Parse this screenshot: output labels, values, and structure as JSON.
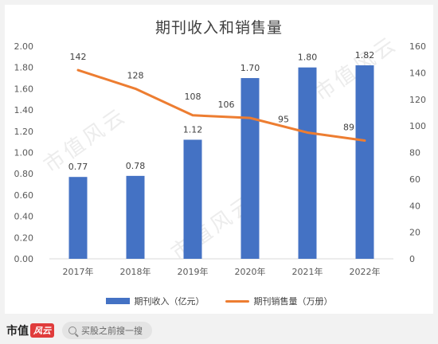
{
  "chart_data": {
    "type": "bar",
    "title": "期刊收入和销售量",
    "categories": [
      "2017年",
      "2018年",
      "2019年",
      "2020年",
      "2021年",
      "2022年"
    ],
    "series": [
      {
        "name": "期刊收入（亿元）",
        "type": "bar",
        "axis": "left",
        "color": "#4472c4",
        "values": [
          0.77,
          0.78,
          1.12,
          1.7,
          1.8,
          1.82
        ],
        "labels": [
          "0.77",
          "0.78",
          "1.12",
          "1.70",
          "1.80",
          "1.82"
        ]
      },
      {
        "name": "期刊销售量（万册）",
        "type": "line",
        "axis": "right",
        "color": "#ed7d31",
        "values": [
          142,
          128,
          108,
          106,
          95,
          89
        ],
        "labels": [
          "142",
          "128",
          "108",
          "106",
          "95",
          "89"
        ]
      }
    ],
    "y_left": {
      "lim": [
        0,
        2.0
      ],
      "ticks": [
        "0.00",
        "0.20",
        "0.40",
        "0.60",
        "0.80",
        "1.00",
        "1.20",
        "1.40",
        "1.60",
        "1.80",
        "2.00"
      ]
    },
    "y_right": {
      "lim": [
        0,
        160
      ],
      "ticks": [
        "0",
        "20",
        "40",
        "60",
        "80",
        "100",
        "120",
        "140",
        "160"
      ]
    },
    "grid": false,
    "legend": "bottom"
  },
  "footer": {
    "brand": "市值",
    "brand_seal": "风云",
    "search_placeholder": "买股之前搜一搜"
  },
  "watermark": "市值风云",
  "colors": {
    "bar": "#4472c4",
    "line": "#ed7d31",
    "axis_text": "#595959"
  }
}
